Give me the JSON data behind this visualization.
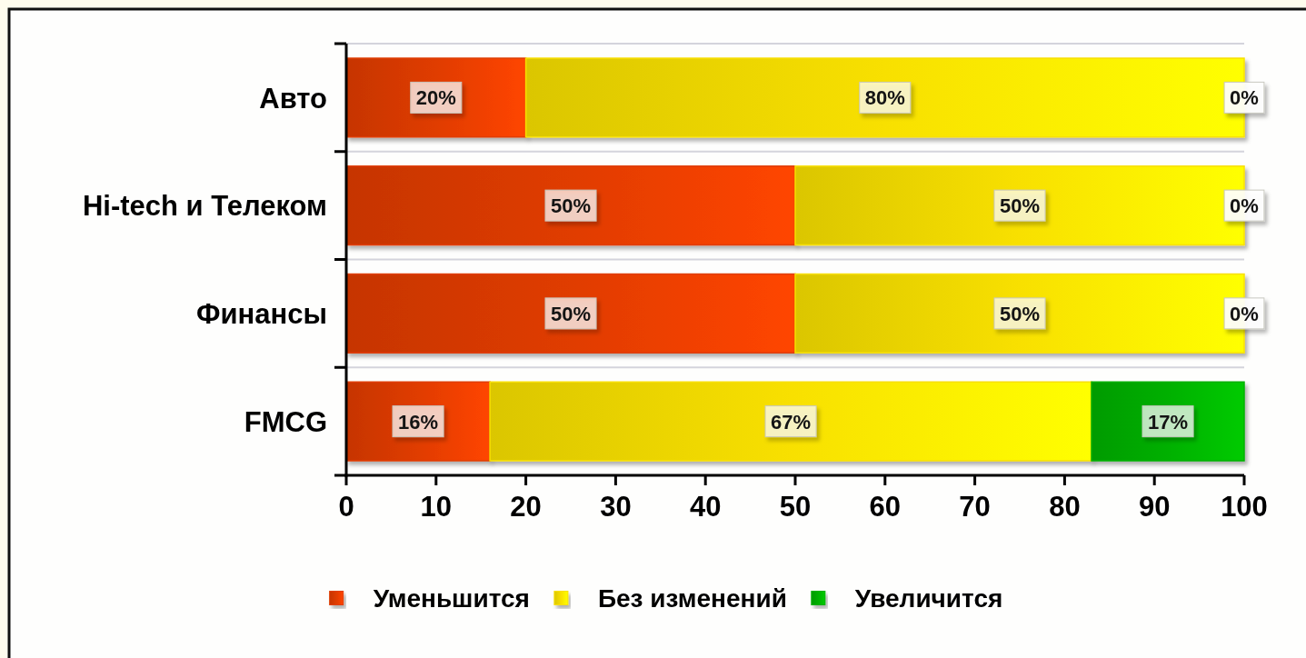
{
  "chart_data": {
    "type": "bar",
    "orientation": "horizontal",
    "stacked": true,
    "categories": [
      "Авто",
      "Hi-tech и Телеком",
      "Финансы",
      "FMCG"
    ],
    "series": [
      {
        "name": "Уменьшится",
        "color": "#e03c00",
        "values": [
          20,
          50,
          50,
          16
        ],
        "value_labels": [
          "20%",
          "50%",
          "50%",
          "16%"
        ]
      },
      {
        "name": "Без изменений",
        "color": "#f8e000",
        "values": [
          80,
          50,
          50,
          67
        ],
        "value_labels": [
          "80%",
          "50%",
          "50%",
          "67%"
        ]
      },
      {
        "name": "Увеличится",
        "color": "#00b000",
        "values": [
          0,
          0,
          0,
          17
        ],
        "value_labels": [
          "0%",
          "0%",
          "0%",
          "17%"
        ]
      }
    ],
    "xlim": [
      0,
      100
    ],
    "xticks": [
      0,
      10,
      20,
      30,
      40,
      50,
      60,
      70,
      80,
      90,
      100
    ],
    "grid": "y",
    "legend": "bottom"
  }
}
